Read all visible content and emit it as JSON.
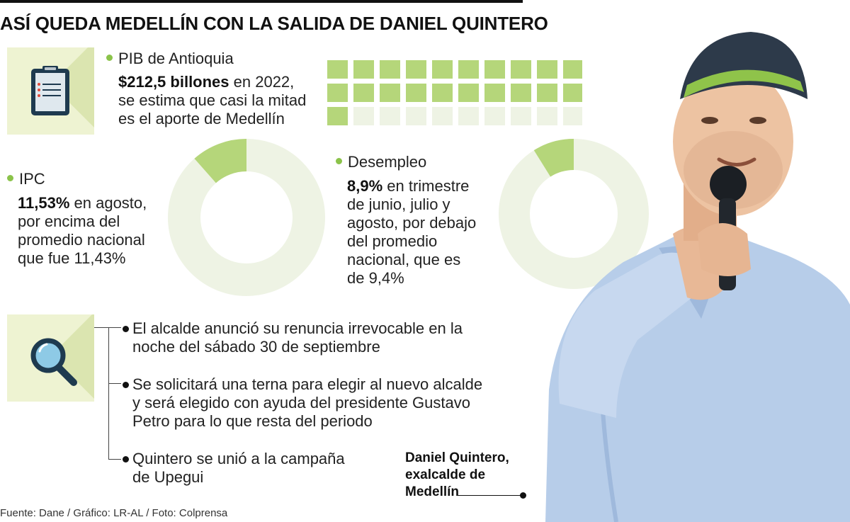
{
  "title": "ASÍ QUEDA MEDELLÍN CON LA SALIDA DE DANIEL QUINTERO",
  "pib": {
    "label": "PIB de Antioquia",
    "value": "$212,5 billones",
    "text_1": " en 2022,",
    "text_2": "se estima que casi la mitad",
    "text_3": "es el aporte de Medellín"
  },
  "ipc": {
    "label": "IPC",
    "value": "11,53%",
    "text_1": " en agosto,",
    "text_2": "por encima del",
    "text_3": "promedio nacional",
    "text_4": "que fue 11,43%"
  },
  "desempleo": {
    "label": "Desempleo",
    "value": "8,9%",
    "text_1": " en trimestre",
    "text_2": "de junio, julio y",
    "text_3": "agosto, por debajo",
    "text_4": "del promedio",
    "text_5": "nacional, que es",
    "text_6": "de 9,4%"
  },
  "bullets": [
    {
      "l1": "El alcalde anunció su renuncia irrevocable en la",
      "l2": "noche del sábado 30 de septiembre"
    },
    {
      "l1": "Se solicitará una terna para elegir al nuevo alcalde",
      "l2": "y será elegido con ayuda del presidente Gustavo",
      "l3": "Petro para lo que resta del periodo"
    },
    {
      "l1": "Quintero se unió a la campaña",
      "l2": "de Upegui"
    }
  ],
  "photo_caption": {
    "l1": "Daniel Quintero,",
    "l2": "exalcalde de",
    "l3": "Medellín"
  },
  "source": "Fuente: Dane / Gráfico: LR-AL / Foto: Colprensa",
  "colors": {
    "accent": "#b5d67a",
    "dot": "#8bc34a",
    "light": "#eef3e4",
    "box": "#eef3d2"
  },
  "icons": [
    "clipboard-icon",
    "magnifier-icon"
  ],
  "chart_data": [
    {
      "type": "waffle",
      "total_cells": 30,
      "filled_cells": 21,
      "unit_share_of_pib": 0.0333,
      "description_value": "$212,5 billones"
    },
    {
      "type": "pie",
      "name": "IPC",
      "values": [
        11.53,
        88.47
      ]
    },
    {
      "type": "pie",
      "name": "Desempleo",
      "values": [
        8.9,
        91.1
      ]
    }
  ]
}
